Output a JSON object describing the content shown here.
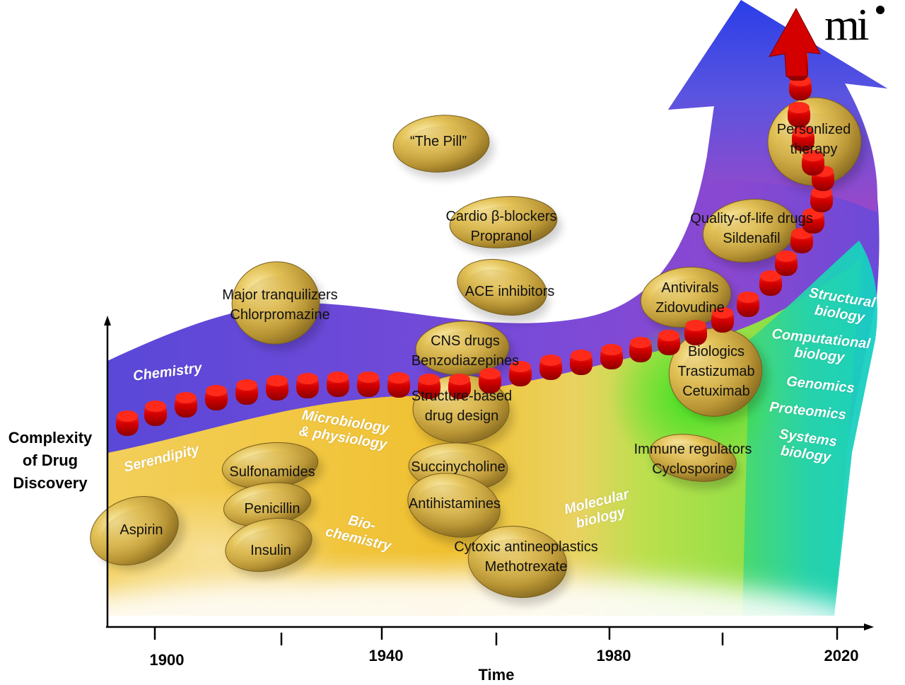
{
  "axes": {
    "y_label": [
      "Complexity",
      "of Drug",
      "Discovery"
    ],
    "x_label": "Time",
    "x_ticks": [
      "1900",
      "1940",
      "1980",
      "2020"
    ]
  },
  "fields": [
    {
      "id": "chemistry",
      "lines": [
        "Chemistry"
      ]
    },
    {
      "id": "serendipity",
      "lines": [
        "Serendipity"
      ]
    },
    {
      "id": "microbiology",
      "lines": [
        "Microbiology",
        "& physiology"
      ]
    },
    {
      "id": "biochemistry",
      "lines": [
        "Bio-",
        "chemistry"
      ]
    },
    {
      "id": "molecular",
      "lines": [
        "Molecular",
        "biology"
      ]
    },
    {
      "id": "structural",
      "lines": [
        "Structural",
        "biology"
      ]
    },
    {
      "id": "computational",
      "lines": [
        "Computational",
        "biology"
      ]
    },
    {
      "id": "genomics",
      "lines": [
        "Genomics"
      ]
    },
    {
      "id": "proteomics",
      "lines": [
        "Proteomics"
      ]
    },
    {
      "id": "systems",
      "lines": [
        "Systems",
        "biology"
      ]
    }
  ],
  "pills": [
    {
      "id": "aspirin",
      "lines": [
        "Aspirin"
      ]
    },
    {
      "id": "sulfonamides",
      "lines": [
        "Sulfonamides"
      ]
    },
    {
      "id": "penicillin",
      "lines": [
        "Penicillin"
      ]
    },
    {
      "id": "insulin",
      "lines": [
        "Insulin"
      ]
    },
    {
      "id": "tranquilizers",
      "lines": [
        "Major tranquilizers",
        "Chlorpromazine"
      ]
    },
    {
      "id": "the-pill",
      "lines": [
        "“The Pill”"
      ]
    },
    {
      "id": "beta-blockers",
      "lines": [
        "Cardio β-blockers",
        "Propranol"
      ]
    },
    {
      "id": "ace",
      "lines": [
        "ACE inhibitors"
      ]
    },
    {
      "id": "cns",
      "lines": [
        "CNS drugs",
        "Benzodiazepines"
      ]
    },
    {
      "id": "structure-based",
      "lines": [
        "Structure-based",
        "drug design"
      ]
    },
    {
      "id": "succinylcholine",
      "lines": [
        "Succinycholine"
      ]
    },
    {
      "id": "antihistamines",
      "lines": [
        "Antihistamines"
      ]
    },
    {
      "id": "cytoxic",
      "lines": [
        "Cytoxic antineoplastics",
        "Methotrexate"
      ]
    },
    {
      "id": "antivirals",
      "lines": [
        "Antivirals",
        "Zidovudine"
      ]
    },
    {
      "id": "quality-of-life",
      "lines": [
        "Quality-of-life drugs",
        "Sildenafil"
      ]
    },
    {
      "id": "biologics",
      "lines": [
        "Biologics",
        "Trastizumab",
        "Cetuximab"
      ]
    },
    {
      "id": "immune",
      "lines": [
        "Immune regulators",
        "Cyclosporine"
      ]
    },
    {
      "id": "personalized",
      "lines": [
        "Personlized",
        "therapy"
      ]
    }
  ],
  "logo": {
    "text": "mi"
  },
  "colors": {
    "chemistry_band": "#4a4ee0",
    "purple": "#8a4fd0",
    "gold": "#f0c23a",
    "green": "#3ed83a",
    "teal": "#22d4b4",
    "red_pill": "#d40000",
    "gold_pill": "#c9a742"
  }
}
